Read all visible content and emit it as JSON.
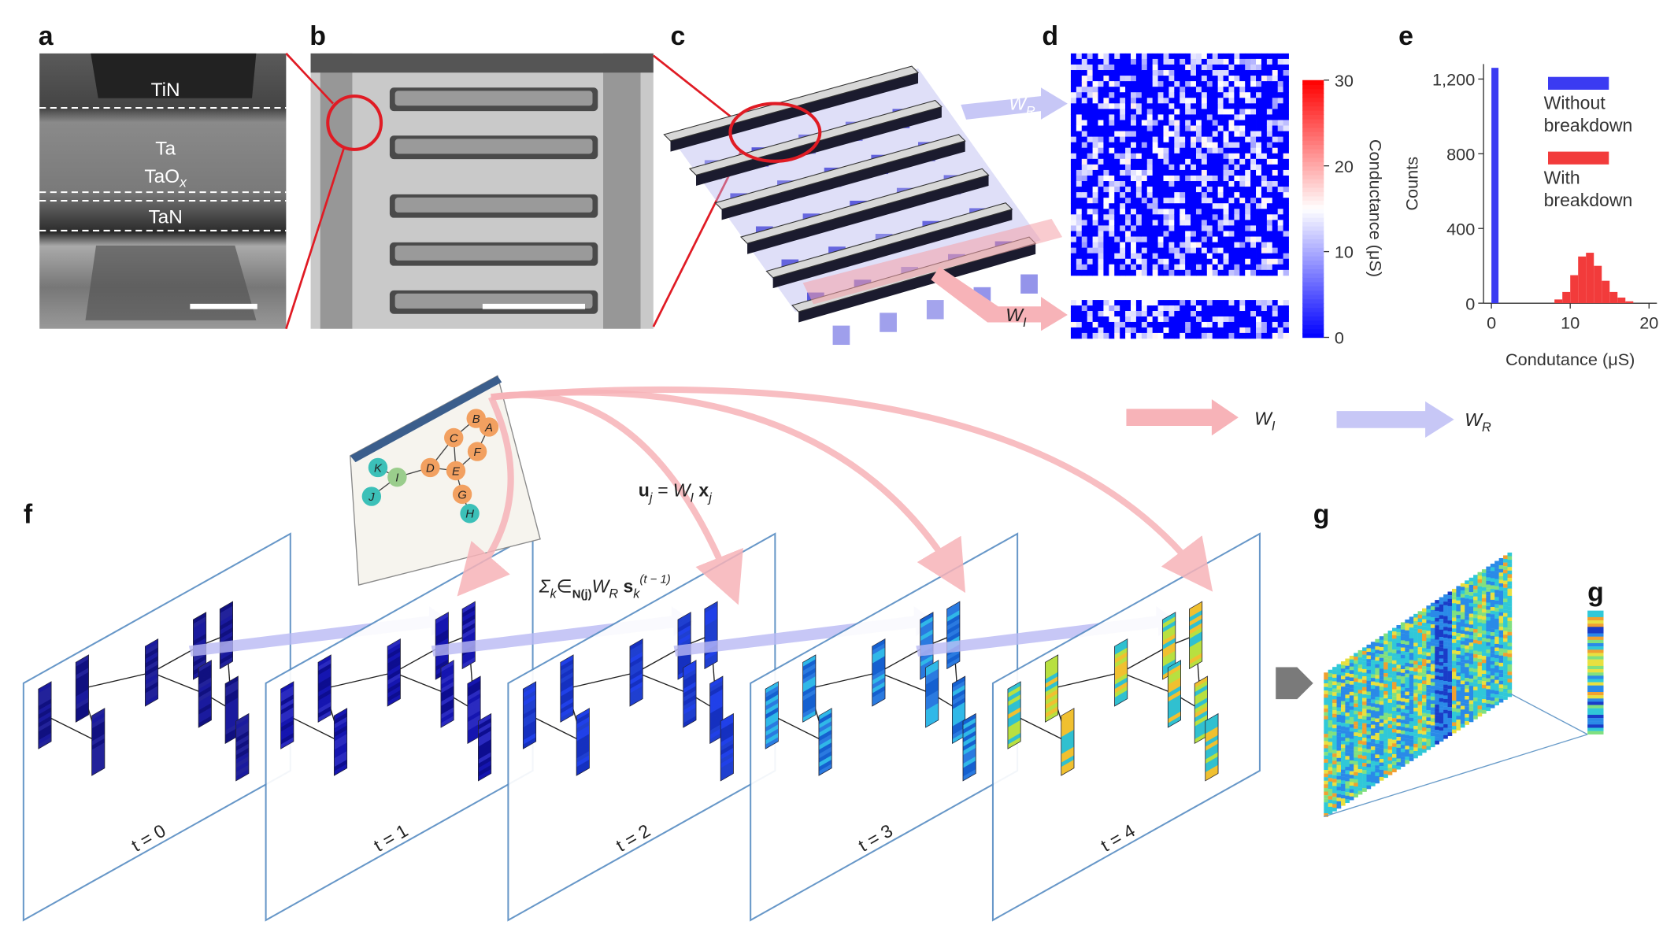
{
  "panel_labels": [
    "a",
    "b",
    "c",
    "d",
    "e",
    "f",
    "g"
  ],
  "panel_a": {
    "tin": "TiN",
    "ta": "Ta",
    "taox": [
      "TaO",
      "x"
    ],
    "tan": "TaN"
  },
  "panel_c": {
    "w_r": [
      "W",
      "R"
    ],
    "w_i": [
      "W",
      "I"
    ]
  },
  "panel_d": {
    "colorbar": {
      "label": "Conductance (μS)",
      "lim": [
        0,
        30
      ],
      "ticks": [
        0,
        10,
        20,
        30
      ]
    }
  },
  "chart_data": {
    "type": "histogram",
    "xlabel": "Condutance (μS)",
    "ylabel": "Counts",
    "xlim": [
      -1,
      21
    ],
    "ylim": [
      0,
      1280
    ],
    "xticks": [
      0,
      10,
      20
    ],
    "yticks": [
      0,
      400,
      800,
      {
        "value": 1200,
        "label": "1,200"
      }
    ],
    "series": [
      {
        "name": "Without breakdown",
        "color": "#3b3bf2",
        "bins": [
          0,
          1
        ],
        "values": [
          1260
        ]
      },
      {
        "name": "With breakdown",
        "color": "#f23b3b",
        "bins": [
          8,
          9,
          10,
          11,
          12,
          13,
          14,
          15,
          16,
          17,
          18
        ],
        "values": [
          20,
          60,
          150,
          250,
          270,
          200,
          120,
          60,
          30,
          10
        ]
      }
    ]
  },
  "legend": {
    "w_i": [
      "W",
      "I"
    ],
    "w_r": [
      "W",
      "R"
    ]
  },
  "panel_f": {
    "nodes": [
      "A",
      "B",
      "C",
      "D",
      "E",
      "F",
      "G",
      "H",
      "I",
      "J",
      "K"
    ],
    "eq_input": [
      "u",
      "j",
      " = W",
      "I",
      " x",
      "j"
    ],
    "eq_recurrent": [
      "Σ",
      "k",
      "∈",
      "N(j)",
      "W",
      "R",
      " s",
      "k",
      "(t − 1)"
    ],
    "time_labels": [
      "t = 0",
      "t = 1",
      "t = 2",
      "t = 3",
      "t = 4"
    ]
  },
  "panel_g": {
    "small_label": "g"
  }
}
